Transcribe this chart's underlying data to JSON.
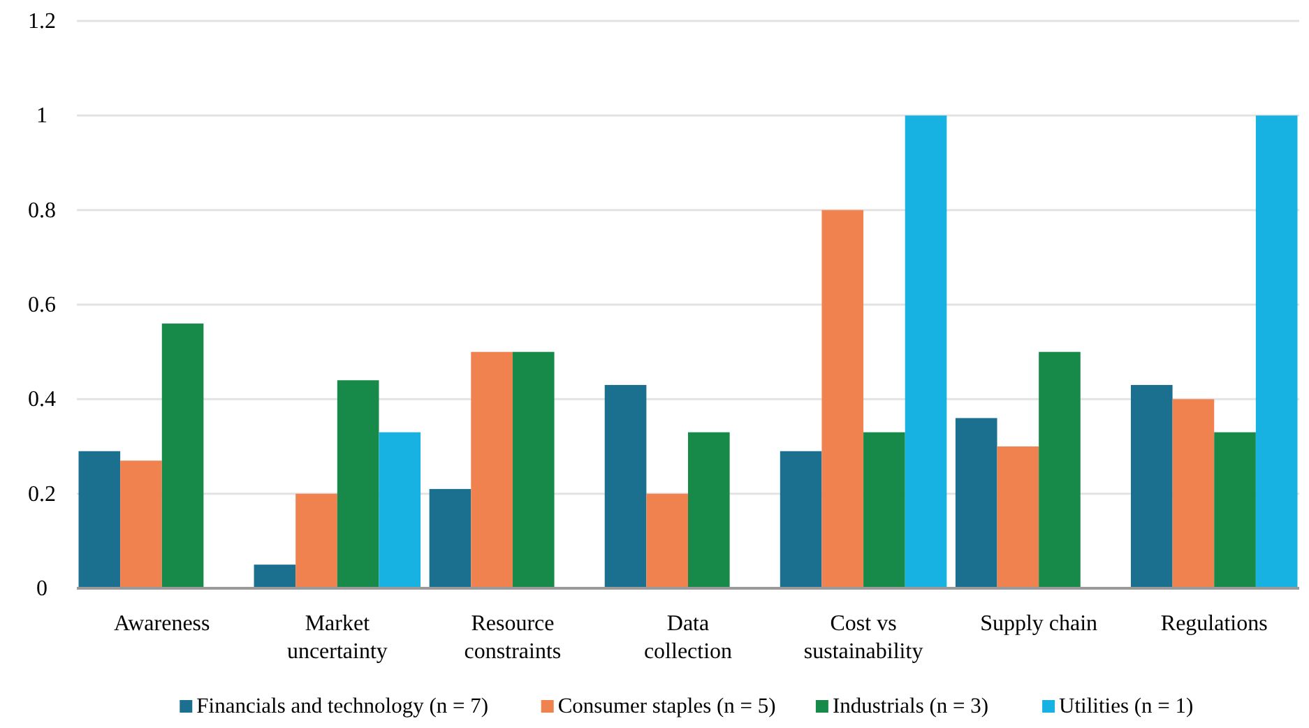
{
  "chart_data": {
    "type": "bar",
    "categories": [
      "Awareness",
      "Market uncertainty",
      "Resource constraints",
      "Data collection",
      "Cost vs sustainability",
      "Supply chain",
      "Regulations"
    ],
    "series": [
      {
        "name": "Financials and technology (n = 7)",
        "color": "#1b6f8f",
        "values": [
          0.29,
          0.05,
          0.21,
          0.43,
          0.29,
          0.36,
          0.43
        ]
      },
      {
        "name": "Consumer staples (n = 5)",
        "color": "#f0824f",
        "values": [
          0.27,
          0.2,
          0.5,
          0.2,
          0.8,
          0.3,
          0.4
        ]
      },
      {
        "name": "Industrials (n = 3)",
        "color": "#178a4a",
        "values": [
          0.56,
          0.44,
          0.5,
          0.33,
          0.33,
          0.5,
          0.33
        ]
      },
      {
        "name": "Utilities (n = 1)",
        "color": "#17b2e2",
        "values": [
          0,
          0.33,
          0,
          0,
          1,
          0,
          1
        ]
      }
    ],
    "ylim": [
      0,
      1.2
    ],
    "yticks": [
      0,
      0.2,
      0.4,
      0.6,
      0.8,
      1,
      1.2
    ],
    "grid": "y",
    "legend": "bottom"
  }
}
